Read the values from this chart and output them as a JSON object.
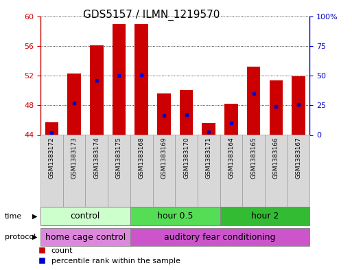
{
  "title": "GDS5157 / ILMN_1219570",
  "samples": [
    "GSM1383172",
    "GSM1383173",
    "GSM1383174",
    "GSM1383175",
    "GSM1383168",
    "GSM1383169",
    "GSM1383170",
    "GSM1383171",
    "GSM1383164",
    "GSM1383165",
    "GSM1383166",
    "GSM1383167"
  ],
  "bar_bottom": 44,
  "bar_tops": [
    45.7,
    52.3,
    56.1,
    58.9,
    58.95,
    49.6,
    50.1,
    45.6,
    48.2,
    53.2,
    51.4,
    51.9
  ],
  "percentile_values": [
    44.3,
    48.3,
    51.4,
    52.0,
    52.1,
    46.6,
    46.7,
    44.4,
    45.6,
    49.6,
    47.8,
    48.1
  ],
  "ylim_left": [
    44,
    60
  ],
  "ylim_right": [
    0,
    100
  ],
  "yticks_left": [
    44,
    48,
    52,
    56,
    60
  ],
  "yticks_right": [
    0,
    25,
    50,
    75,
    100
  ],
  "bar_color": "#cc0000",
  "percentile_color": "#0000cc",
  "bar_width": 0.6,
  "grid_color": "#000000",
  "background_color": "#ffffff",
  "plot_bg_color": "#ffffff",
  "time_groups": [
    {
      "label": "control",
      "start": 0,
      "end": 4,
      "color": "#ccffcc"
    },
    {
      "label": "hour 0.5",
      "start": 4,
      "end": 8,
      "color": "#55dd55"
    },
    {
      "label": "hour 2",
      "start": 8,
      "end": 12,
      "color": "#33bb33"
    }
  ],
  "protocol_groups": [
    {
      "label": "home cage control",
      "start": 0,
      "end": 4,
      "color": "#dd88dd"
    },
    {
      "label": "auditory fear conditioning",
      "start": 4,
      "end": 12,
      "color": "#cc55cc"
    }
  ],
  "left_axis_color": "#cc0000",
  "right_axis_color": "#0000cc",
  "title_fontsize": 11,
  "tick_fontsize": 8,
  "sample_fontsize": 6.5,
  "label_fontsize": 9,
  "legend_fontsize": 8
}
